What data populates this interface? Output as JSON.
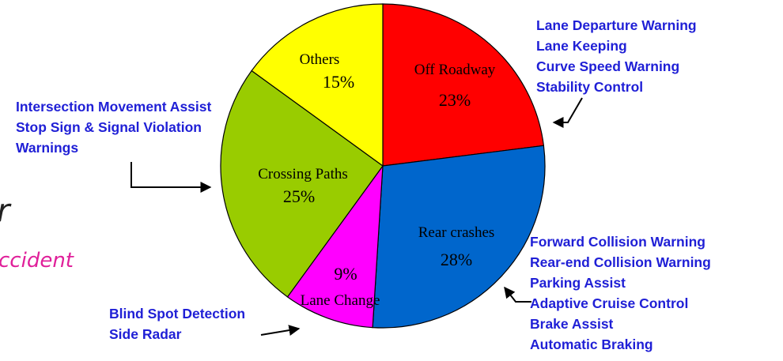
{
  "chart_data": {
    "type": "pie",
    "categories": [
      "Off Roadway",
      "Rear crashes",
      "Lane Change",
      "Crossing Paths",
      "Others"
    ],
    "values": [
      23,
      28,
      9,
      25,
      15
    ],
    "value_labels": [
      "23%",
      "28%",
      "9%",
      "25%",
      "15%"
    ],
    "colors": [
      "#ff0000",
      "#0066cc",
      "#ff00ff",
      "#99cc00",
      "#ffff00"
    ],
    "annotations": [
      {
        "lines": [
          "Lane Departure Warning",
          "Lane Keeping",
          "Curve Speed Warning",
          "Stability Control"
        ]
      },
      {
        "lines": [
          "Forward Collision Warning",
          "Rear-end Collision Warning",
          "Parking Assist",
          "Adaptive Cruise Control",
          "Brake Assist",
          "Automatic Braking"
        ]
      },
      {
        "lines": [
          "Blind Spot Detection",
          "Side Radar"
        ]
      },
      {
        "lines": [
          "Intersection Movement Assist",
          "Stop Sign & Signal Violation",
          "Warnings"
        ]
      }
    ],
    "cropped_text": [
      "r",
      "ccident"
    ]
  }
}
